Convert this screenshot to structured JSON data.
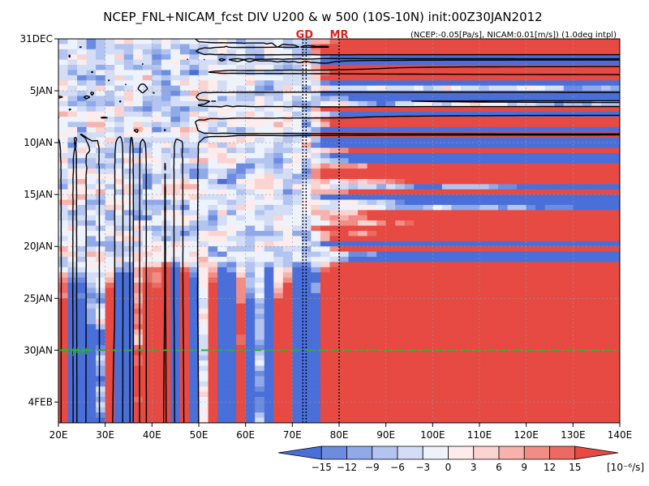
{
  "chart_data": {
    "type": "heatmap",
    "title": "NCEP_FNL+NICAM_fcst DIV U200 & w 500 (10S-10N) init:00Z30JAN2012",
    "subtitle": "(NCEP:-0.05[Pa/s], NICAM:0.01[m/s]) (1.0deg intpl)",
    "x_axis": {
      "ticks": [
        "20E",
        "30E",
        "40E",
        "50E",
        "60E",
        "70E",
        "80E",
        "90E",
        "100E",
        "110E",
        "120E",
        "130E",
        "140E"
      ],
      "tick_values": [
        20,
        30,
        40,
        50,
        60,
        70,
        80,
        90,
        100,
        110,
        120,
        130,
        140
      ],
      "range": [
        20,
        140
      ]
    },
    "y_axis": {
      "ticks": [
        "31DEC",
        "5JAN",
        "10JAN",
        "15JAN",
        "20JAN",
        "25JAN",
        "30JAN",
        "4FEB"
      ],
      "tick_days": [
        0,
        5,
        10,
        15,
        20,
        25,
        30,
        35
      ],
      "range": [
        "2011-12-31",
        "2012-02-06"
      ],
      "direction": "downward (time increases)"
    },
    "markers": [
      {
        "label": "GD",
        "lon": 72.6
      },
      {
        "label": "MR",
        "lon": 80.0
      }
    ],
    "init_line": {
      "label": "30JAN",
      "day": 30,
      "color": "#22bb22"
    },
    "colorbar": {
      "unit": "[10⁻⁶/s]",
      "levels": [
        -15,
        -12,
        -9,
        -6,
        -3,
        0,
        3,
        6,
        9,
        12,
        15
      ],
      "colors": [
        "#4a6fd8",
        "#6d8ce0",
        "#90a9e8",
        "#b2c4ef",
        "#d3ddf6",
        "#eef2fb",
        "#fdeceb",
        "#fbd3d0",
        "#f7b2ad",
        "#f28d86",
        "#ec6a62",
        "#e64a42"
      ]
    },
    "contour_color": "#000000",
    "grid": true
  }
}
